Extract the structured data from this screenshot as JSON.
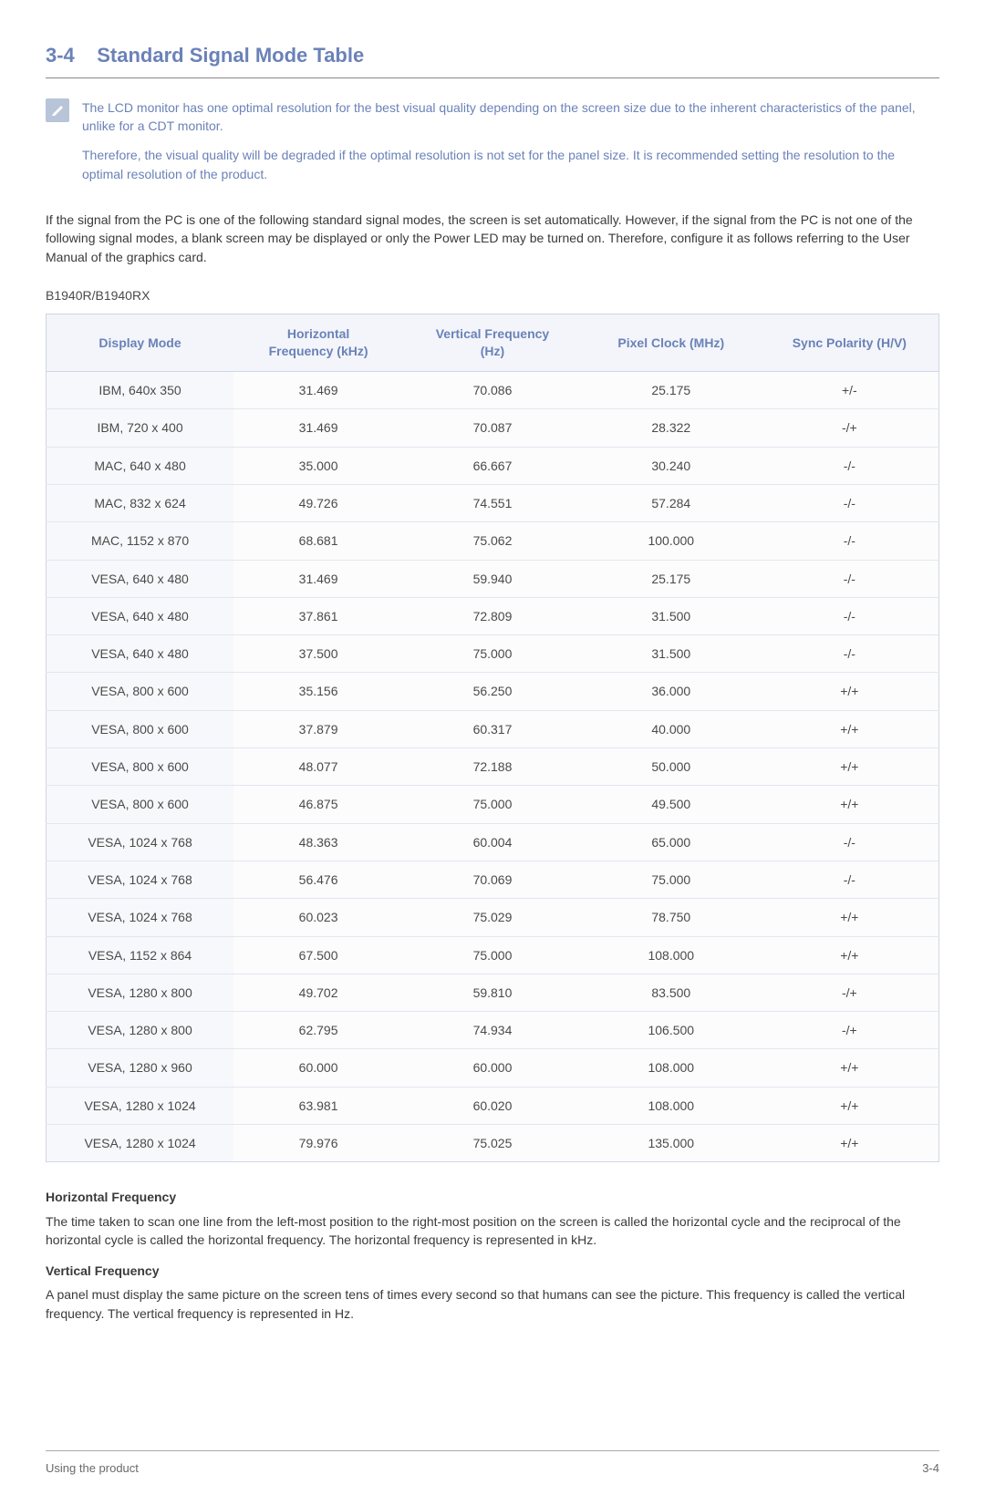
{
  "heading": {
    "number": "3-4",
    "title": "Standard Signal Mode Table"
  },
  "note": {
    "p1": "The LCD monitor has one optimal resolution for the best visual quality depending on the screen size due to the inherent characteristics of the panel, unlike for a CDT monitor.",
    "p2": "Therefore, the visual quality will be degraded if the optimal resolution is not set for the panel size. It is recommended setting the resolution to the optimal resolution of the product."
  },
  "intro": "If the signal from the PC is one of the following standard signal modes, the screen is set automatically. However, if the signal from the PC is not one of the following signal modes, a blank screen may be displayed or only the Power LED may be turned on. Therefore, configure it as follows referring to the User Manual of the graphics card.",
  "model": "B1940R/B1940RX",
  "table": {
    "columns": [
      "Display Mode",
      "Horizontal Frequency (kHz)",
      "Vertical Frequency (Hz)",
      "Pixel Clock (MHz)",
      "Sync Polarity (H/V)"
    ],
    "header_bg": "#f3f5fa",
    "header_color": "#6a82b8",
    "border_color": "#cfd6e4",
    "row_border": "#e2e6ef",
    "first_col_bg": "#f7f8fb",
    "cell_bg": "#fcfcfd",
    "rows": [
      [
        "IBM, 640x 350",
        "31.469",
        "70.086",
        "25.175",
        "+/-"
      ],
      [
        "IBM, 720 x 400",
        "31.469",
        "70.087",
        "28.322",
        "-/+"
      ],
      [
        "MAC, 640 x 480",
        "35.000",
        "66.667",
        "30.240",
        "-/-"
      ],
      [
        "MAC, 832 x 624",
        "49.726",
        "74.551",
        "57.284",
        "-/-"
      ],
      [
        "MAC, 1152 x 870",
        "68.681",
        "75.062",
        "100.000",
        "-/-"
      ],
      [
        "VESA, 640 x 480",
        "31.469",
        "59.940",
        "25.175",
        "-/-"
      ],
      [
        "VESA, 640 x 480",
        "37.861",
        "72.809",
        "31.500",
        "-/-"
      ],
      [
        "VESA, 640 x 480",
        "37.500",
        "75.000",
        "31.500",
        "-/-"
      ],
      [
        "VESA, 800 x 600",
        "35.156",
        "56.250",
        "36.000",
        "+/+"
      ],
      [
        "VESA, 800 x 600",
        "37.879",
        "60.317",
        "40.000",
        "+/+"
      ],
      [
        "VESA, 800 x 600",
        "48.077",
        "72.188",
        "50.000",
        "+/+"
      ],
      [
        "VESA, 800 x 600",
        "46.875",
        "75.000",
        "49.500",
        "+/+"
      ],
      [
        "VESA, 1024 x 768",
        "48.363",
        "60.004",
        "65.000",
        "-/-"
      ],
      [
        "VESA, 1024 x 768",
        "56.476",
        "70.069",
        "75.000",
        "-/-"
      ],
      [
        "VESA, 1024 x 768",
        "60.023",
        "75.029",
        "78.750",
        "+/+"
      ],
      [
        "VESA, 1152 x 864",
        "67.500",
        "75.000",
        "108.000",
        "+/+"
      ],
      [
        "VESA, 1280 x 800",
        "49.702",
        "59.810",
        "83.500",
        "-/+"
      ],
      [
        "VESA, 1280 x 800",
        "62.795",
        "74.934",
        "106.500",
        "-/+"
      ],
      [
        "VESA, 1280 x 960",
        "60.000",
        "60.000",
        "108.000",
        "+/+"
      ],
      [
        "VESA, 1280 x 1024",
        "63.981",
        "60.020",
        "108.000",
        "+/+"
      ],
      [
        "VESA, 1280 x 1024",
        "79.976",
        "75.025",
        "135.000",
        "+/+"
      ]
    ]
  },
  "defs": {
    "hf_title": "Horizontal Frequency",
    "hf_body": "The time taken to scan one line from the left-most position to the right-most position on the screen is called the horizontal cycle and the reciprocal of the horizontal cycle is called the horizontal frequency. The horizontal frequency is represented in kHz.",
    "vf_title": "Vertical Frequency",
    "vf_body": "A panel must display the same picture on the screen tens of times every second so that humans can see the picture. This frequency is called the vertical frequency. The vertical frequency is represented in Hz."
  },
  "footer": {
    "left": "Using the product",
    "right": "3-4"
  },
  "colors": {
    "accent": "#6a82b8",
    "body_text": "#3a3a3a",
    "muted_text": "#4a4a4a",
    "icon_bg": "#b8c4d8"
  }
}
